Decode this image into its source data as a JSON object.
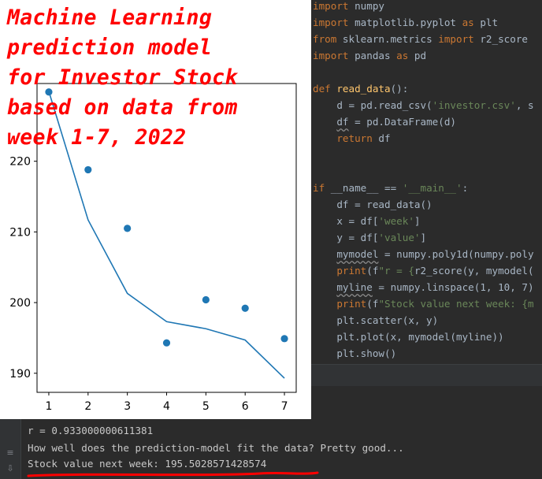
{
  "editor": {
    "lines": [
      [
        {
          "t": "import",
          "c": "kw"
        },
        {
          "t": " numpy",
          "c": ""
        }
      ],
      [
        {
          "t": "import",
          "c": "kw"
        },
        {
          "t": " matplotlib.pyplot ",
          "c": ""
        },
        {
          "t": "as",
          "c": "kw"
        },
        {
          "t": " plt",
          "c": ""
        }
      ],
      [
        {
          "t": "from",
          "c": "kw"
        },
        {
          "t": " sklearn.metrics ",
          "c": ""
        },
        {
          "t": "import",
          "c": "kw"
        },
        {
          "t": " r2_score",
          "c": ""
        }
      ],
      [
        {
          "t": "import",
          "c": "kw"
        },
        {
          "t": " pandas ",
          "c": ""
        },
        {
          "t": "as",
          "c": "kw"
        },
        {
          "t": " pd",
          "c": ""
        }
      ],
      [],
      [
        {
          "t": "def ",
          "c": "kw"
        },
        {
          "t": "read_data",
          "c": "fn"
        },
        {
          "t": "():",
          "c": ""
        }
      ],
      [
        {
          "t": "    d = pd.read_csv(",
          "c": ""
        },
        {
          "t": "'investor.csv'",
          "c": "str"
        },
        {
          "t": ", s",
          "c": ""
        }
      ],
      [
        {
          "t": "    ",
          "c": ""
        },
        {
          "t": "df",
          "c": "squiggle"
        },
        {
          "t": " = pd.DataFrame(d)",
          "c": ""
        }
      ],
      [
        {
          "t": "    ",
          "c": ""
        },
        {
          "t": "return",
          "c": "kw"
        },
        {
          "t": " df",
          "c": ""
        }
      ],
      [],
      [],
      [
        {
          "t": "if",
          "c": "kw"
        },
        {
          "t": " __name__ == ",
          "c": ""
        },
        {
          "t": "'__main__'",
          "c": "str"
        },
        {
          "t": ":",
          "c": ""
        }
      ],
      [
        {
          "t": "    df = read_data()",
          "c": ""
        }
      ],
      [
        {
          "t": "    x = df[",
          "c": ""
        },
        {
          "t": "'week'",
          "c": "str"
        },
        {
          "t": "]",
          "c": ""
        }
      ],
      [
        {
          "t": "    y = df[",
          "c": ""
        },
        {
          "t": "'value'",
          "c": "str"
        },
        {
          "t": "]",
          "c": ""
        }
      ],
      [
        {
          "t": "    ",
          "c": ""
        },
        {
          "t": "mymodel",
          "c": "squiggle"
        },
        {
          "t": " = numpy.poly1d(numpy.poly",
          "c": ""
        }
      ],
      [
        {
          "t": "    ",
          "c": ""
        },
        {
          "t": "print",
          "c": "kw"
        },
        {
          "t": "(f",
          "c": ""
        },
        {
          "t": "\"r = {",
          "c": "str"
        },
        {
          "t": "r2_score(y, mymodel(",
          "c": ""
        }
      ],
      [
        {
          "t": "    ",
          "c": ""
        },
        {
          "t": "myline",
          "c": "squiggle"
        },
        {
          "t": " = numpy.linspace(1, 10, 7)",
          "c": ""
        }
      ],
      [
        {
          "t": "    ",
          "c": ""
        },
        {
          "t": "print",
          "c": "kw"
        },
        {
          "t": "(f",
          "c": ""
        },
        {
          "t": "\"Stock value next week: {m",
          "c": "str"
        }
      ],
      [
        {
          "t": "    plt.scatter(x, y)",
          "c": ""
        }
      ],
      [
        {
          "t": "    plt.plot(x, mymodel(myline))",
          "c": ""
        }
      ],
      [
        {
          "t": "    plt.show()",
          "c": ""
        }
      ]
    ]
  },
  "console": {
    "lines": [
      "r = 0.933000000611381",
      "How well does the prediction-model fit the data? Pretty good...",
      "Stock value next week: 195.5028571428574"
    ],
    "gutter_icons": [
      "↑",
      "↓",
      "≡",
      "⇩"
    ],
    "underline_color": "#ff0000"
  },
  "overlay": {
    "title": "Machine Learning\nprediction model\nfor Investor Stock\nbased on data from\nweek 1-7, 2022",
    "color": "#ff0000"
  },
  "chart_data": {
    "type": "scatter",
    "x": [
      1,
      2,
      3,
      4,
      5,
      6,
      7
    ],
    "series": [
      {
        "values": [
          229.8,
          218.8,
          210.5,
          194.3,
          200.4,
          199.2,
          194.9
        ],
        "color": "#1f77b4",
        "mode": "markers"
      },
      {
        "values": [
          229.9,
          211.7,
          201.3,
          197.3,
          196.3,
          194.7,
          189.3
        ],
        "color": "#1f77b4",
        "mode": "line"
      }
    ],
    "xticks": [
      1,
      2,
      3,
      4,
      5,
      6,
      7
    ],
    "yticks": [
      190,
      200,
      210,
      220
    ],
    "xlim": [
      0.7,
      7.3
    ],
    "ylim": [
      187.3,
      231
    ],
    "grid": false
  }
}
